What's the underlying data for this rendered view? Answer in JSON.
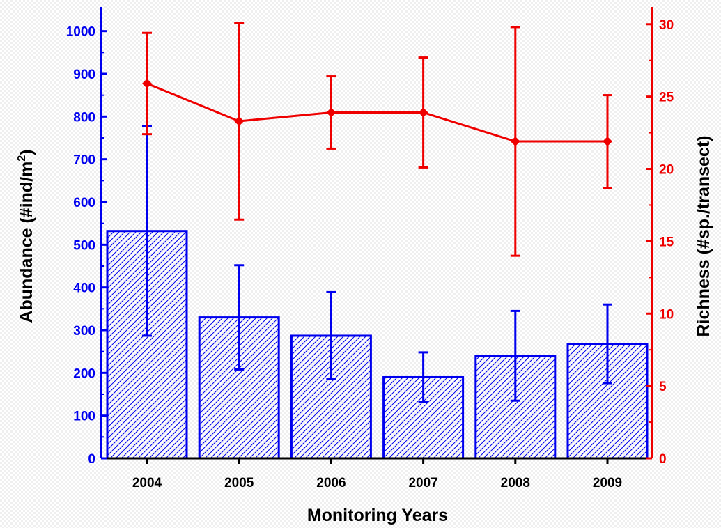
{
  "chart_data": {
    "type": "bar",
    "categories": [
      "2004",
      "2005",
      "2006",
      "2007",
      "2008",
      "2009"
    ],
    "xlabel": "Monitoring Years",
    "ylabel_left": {
      "main": "Abundance (#ind/m",
      "sup": "2",
      "tail": ")"
    },
    "ylabel_right": "Richness (#sp./transect)",
    "ylim_left": [
      0,
      1050
    ],
    "ylim_right": [
      0,
      31
    ],
    "yticks_left": [
      "0",
      "100",
      "200",
      "300",
      "400",
      "500",
      "600",
      "700",
      "800",
      "900",
      "1000"
    ],
    "yticks_right": [
      "0",
      "5",
      "10",
      "15",
      "20",
      "25",
      "30"
    ],
    "series": [
      {
        "kind": "bar",
        "axis": "left",
        "color": "#0000ee",
        "pattern": "diagonal-hatch",
        "values": [
          532,
          330,
          287,
          190,
          240,
          268
        ],
        "error": [
          245,
          122,
          102,
          58,
          105,
          92
        ]
      },
      {
        "kind": "line",
        "axis": "right",
        "color": "#ee0000",
        "marker": "diamond",
        "values": [
          25.9,
          23.3,
          23.9,
          23.9,
          21.9,
          21.9
        ],
        "error": [
          3.5,
          6.8,
          2.5,
          3.8,
          7.9,
          3.2
        ]
      }
    ]
  }
}
